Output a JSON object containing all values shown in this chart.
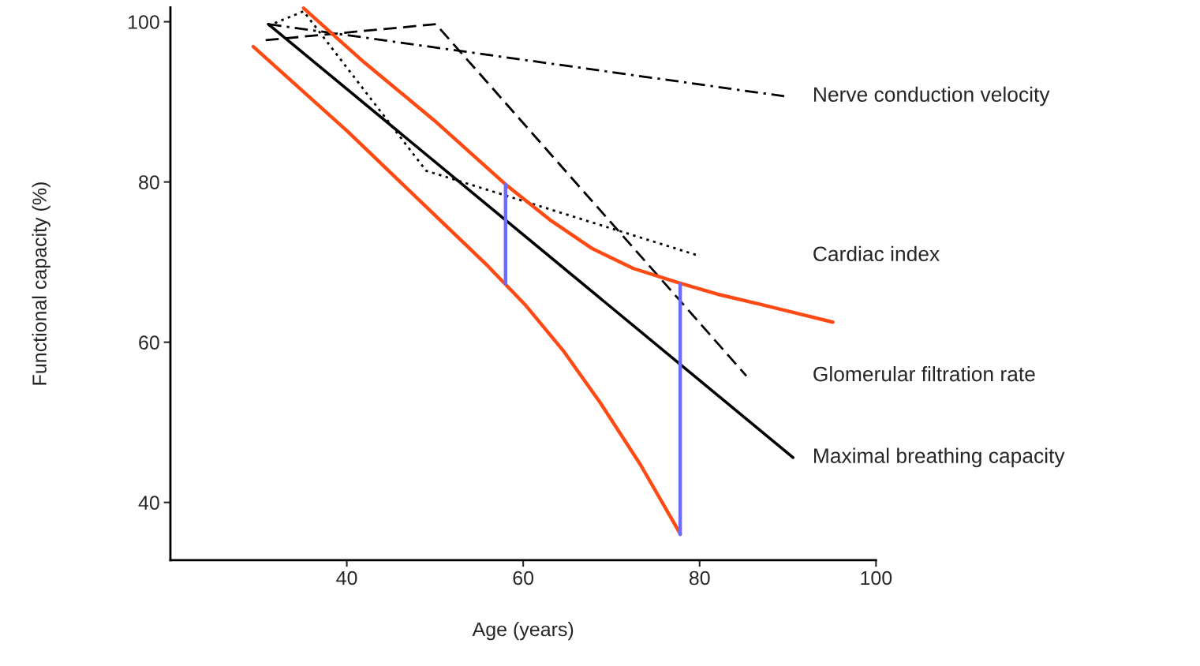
{
  "chart_data": {
    "type": "line",
    "xlabel": "Age (years)",
    "ylabel": "Functional capacity (%)",
    "xlim": [
      20,
      100
    ],
    "xticks": [
      40,
      60,
      80,
      100
    ],
    "ylim": [
      32.8,
      101.8
    ],
    "yticks": [
      40,
      60,
      80,
      100
    ],
    "grid": false,
    "series": [
      {
        "name": "Nerve conduction velocity",
        "color": "#000000",
        "line_style": "dashdot",
        "x": [
          31.1,
          89.6
        ],
        "values": [
          99.7,
          90.7
        ]
      },
      {
        "name": "Cardiac index",
        "color": "#000000",
        "line_style": "dotted",
        "x": [
          31.1,
          35.1,
          49,
          79.9
        ],
        "values": [
          99.5,
          101.3,
          81.4,
          70.8
        ]
      },
      {
        "name": "Glomerular filtration rate",
        "color": "#000000",
        "line_style": "dashed",
        "x": [
          30.8,
          50.1,
          85.3
        ],
        "values": [
          97.7,
          99.7,
          55.8
        ]
      },
      {
        "name": "Maximal breathing capacity",
        "color": "#000000",
        "line_style": "solid",
        "x": [
          31.1,
          90.6
        ],
        "values": [
          99.7,
          45.6
        ]
      },
      {
        "color": "#ff4a14",
        "line_style": "solid",
        "x": [
          35.1,
          42,
          49.9,
          58,
          63,
          67.8,
          72.5,
          77.7,
          82,
          86.6,
          95.1
        ],
        "values": [
          101.7,
          94.9,
          87.7,
          79.7,
          75.3,
          71.7,
          69.2,
          67.4,
          66,
          64.8,
          62.5
        ]
      },
      {
        "color": "#ff4a14",
        "line_style": "solid",
        "x": [
          29.4,
          40.1,
          50.8,
          56,
          60.2,
          64.5,
          68.7,
          73.3,
          77.8
        ],
        "values": [
          96.9,
          86.3,
          75,
          69.5,
          64.7,
          59,
          52.5,
          44.7,
          36.1
        ]
      },
      {
        "color": "#6b6bff",
        "line_style": "solid",
        "x": [
          58,
          58
        ],
        "values": [
          67.3,
          79.7
        ]
      },
      {
        "color": "#6b6bff",
        "line_style": "solid",
        "x": [
          77.8,
          77.8
        ],
        "values": [
          36,
          67.2
        ]
      }
    ]
  }
}
